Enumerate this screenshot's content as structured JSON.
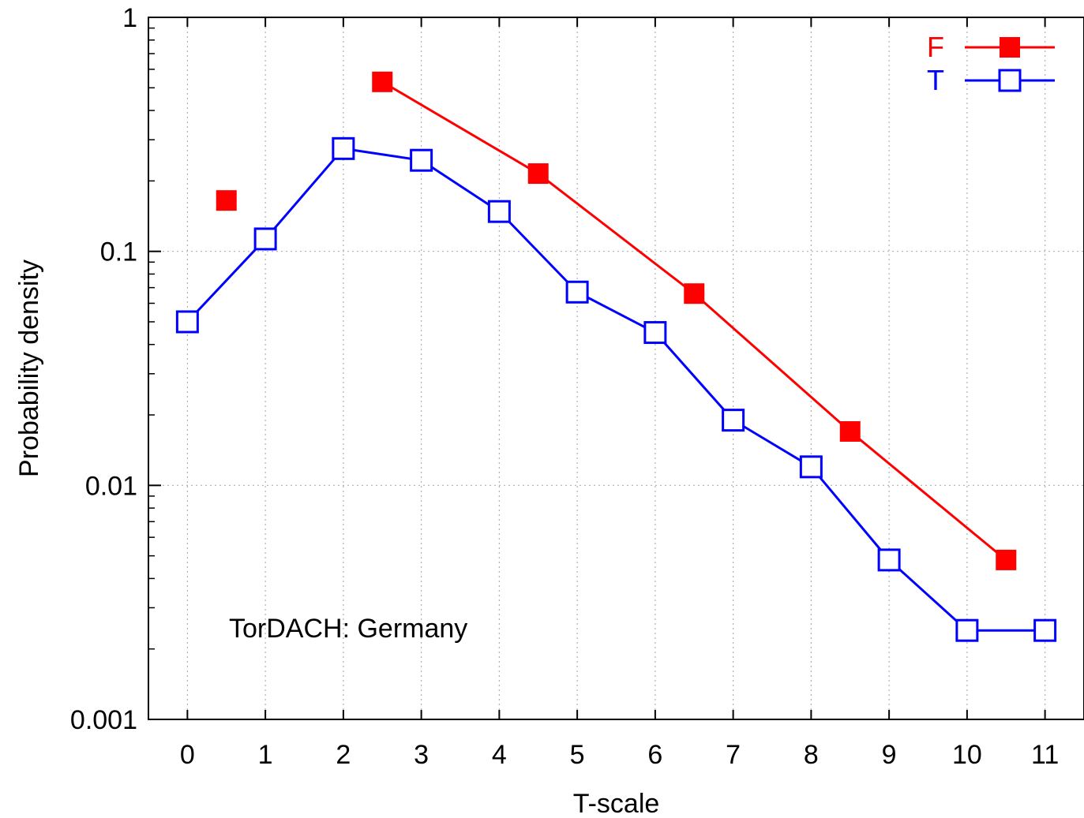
{
  "chart_data": {
    "type": "line",
    "title": "",
    "xlabel": "T-scale",
    "ylabel": "Probability density",
    "xlim": [
      -0.5,
      11.5
    ],
    "ylim": [
      0.001,
      1
    ],
    "yscale": "log",
    "grid": true,
    "legend_position": "top-right",
    "xticks": [
      0,
      1,
      2,
      3,
      4,
      5,
      6,
      7,
      8,
      9,
      10,
      11
    ],
    "xtick_labels": [
      "0",
      "1",
      "2",
      "3",
      "4",
      "5",
      "6",
      "7",
      "8",
      "9",
      "10",
      "11"
    ],
    "yticks": [
      0.001,
      0.01,
      0.1,
      1
    ],
    "ytick_labels": [
      "0.001",
      "0.01",
      "0.1",
      "1"
    ],
    "annotation": "TorDACH: Germany",
    "series": [
      {
        "name": "F",
        "color": "#ff0000",
        "marker": "filled-square",
        "x": [
          0.5,
          2.5,
          4.5,
          6.5,
          8.5,
          10.5
        ],
        "y": [
          0.165,
          0.53,
          0.215,
          0.066,
          0.017,
          0.0048
        ],
        "line_starts_at": 1
      },
      {
        "name": "T",
        "color": "#0000ff",
        "marker": "open-square",
        "x": [
          0,
          1,
          2,
          3,
          4,
          5,
          6,
          7,
          8,
          9,
          10,
          11
        ],
        "y": [
          0.05,
          0.113,
          0.275,
          0.245,
          0.148,
          0.067,
          0.045,
          0.019,
          0.012,
          0.0048,
          0.0024,
          0.0024
        ],
        "line_starts_at": 0
      }
    ]
  }
}
